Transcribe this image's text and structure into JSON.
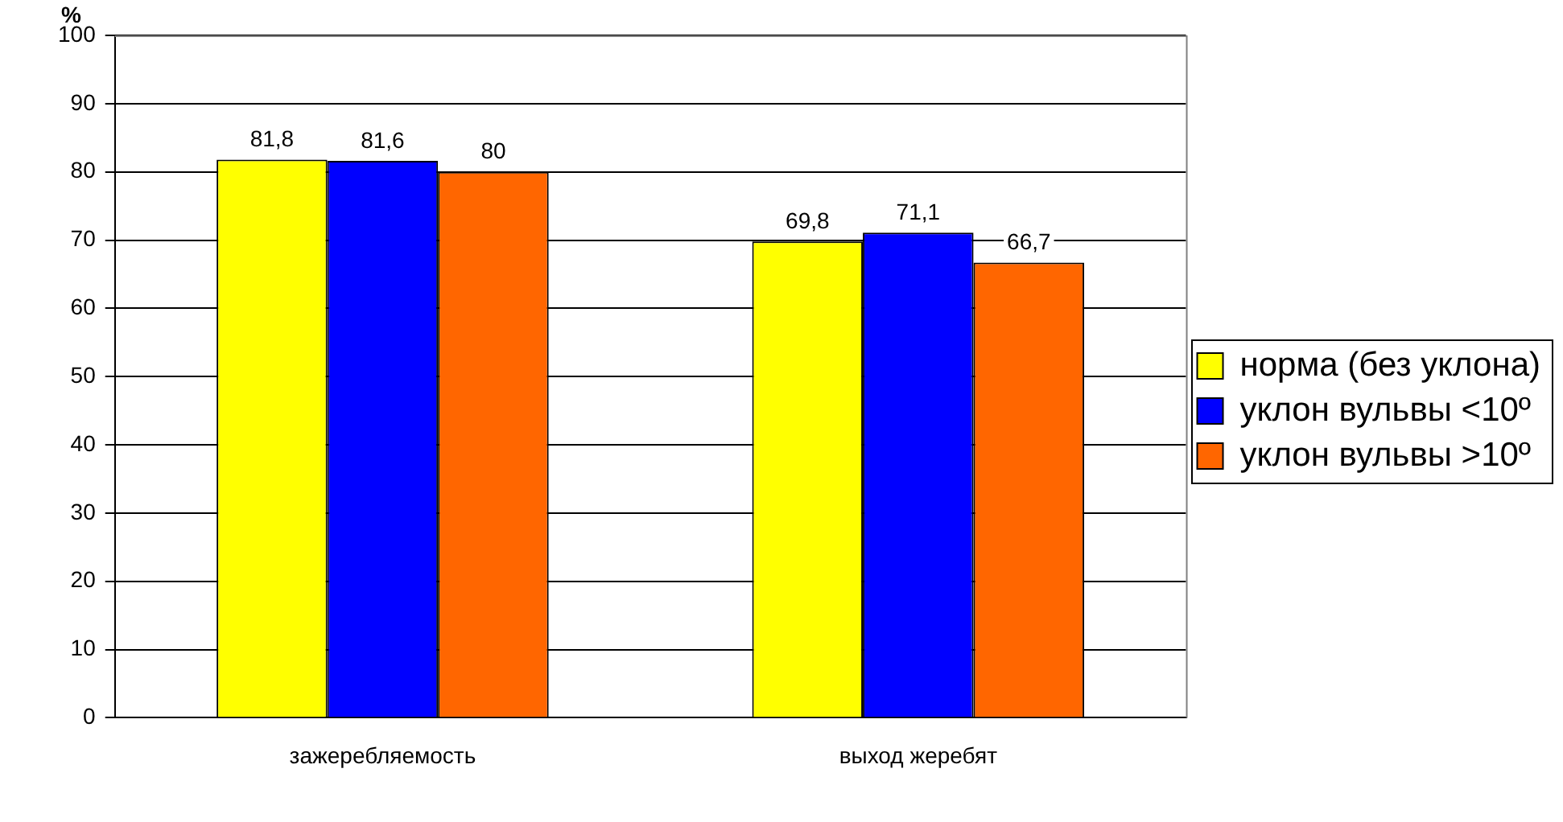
{
  "chart_data": {
    "type": "bar",
    "ylabel": "%",
    "categories": [
      "зажеребляемость",
      "выход жеребят"
    ],
    "series": [
      {
        "name": "норма (без уклона)",
        "color": "#ffff00",
        "values": [
          81.8,
          69.8
        ],
        "value_labels": [
          "81,8",
          "69,8"
        ]
      },
      {
        "name": "уклон вульвы <10º",
        "color": "#0000ff",
        "values": [
          81.6,
          71.1
        ],
        "value_labels": [
          "81,6",
          "71,1"
        ]
      },
      {
        "name": "уклон вульвы >10º",
        "color": "#ff6600",
        "values": [
          80,
          66.7
        ],
        "value_labels": [
          "80",
          "66,7"
        ]
      }
    ],
    "ylim": [
      0,
      100
    ],
    "yticks": [
      0,
      10,
      20,
      30,
      40,
      50,
      60,
      70,
      80,
      90,
      100
    ],
    "grid": "y",
    "legend": "right"
  }
}
